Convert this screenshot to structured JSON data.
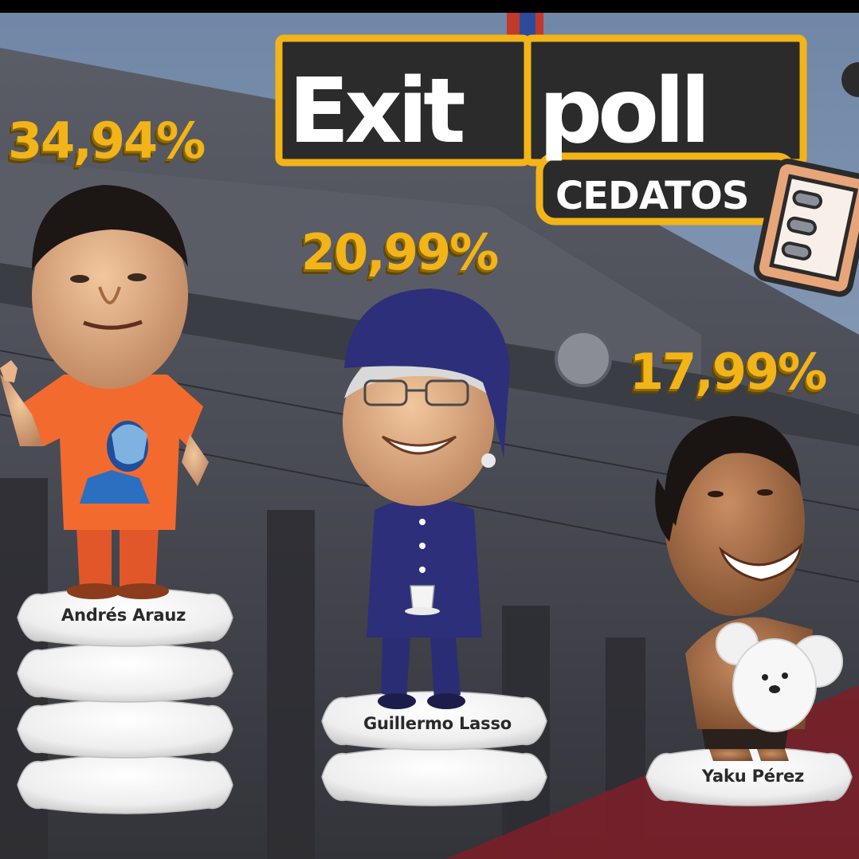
{
  "headline": {
    "title": "Exit poll",
    "title_part1": "Exit",
    "title_part2": "poll",
    "subtitle": "CEDATOS"
  },
  "colors": {
    "accent_yellow": "#f2b418",
    "dark_panel": "#2b2b2b",
    "arauz_orange": "#f26a2e",
    "lasso_blue": "#2d2f7a",
    "pillow_white": "#f4f4f4"
  },
  "chart_data": {
    "type": "bar",
    "title": "Exit poll CEDATOS",
    "categories": [
      "Andrés Arauz",
      "Guillermo Lasso",
      "Yaku Pérez"
    ],
    "values": [
      34.94,
      20.99,
      17.99
    ],
    "value_labels": [
      "34,94%",
      "20,99%",
      "17,99%"
    ],
    "units": "%",
    "bar_style": "stacked pillows",
    "pillow_counts": [
      4,
      2,
      1
    ]
  },
  "candidates": [
    {
      "name": "Andrés Arauz",
      "percent": "34,94%"
    },
    {
      "name": "Guillermo Lasso",
      "percent": "20,99%"
    },
    {
      "name": "Yaku Pérez",
      "percent": "17,99%"
    }
  ],
  "icons": [
    "abacus-icon",
    "coffee-cup-icon",
    "teddy-bear-icon"
  ]
}
